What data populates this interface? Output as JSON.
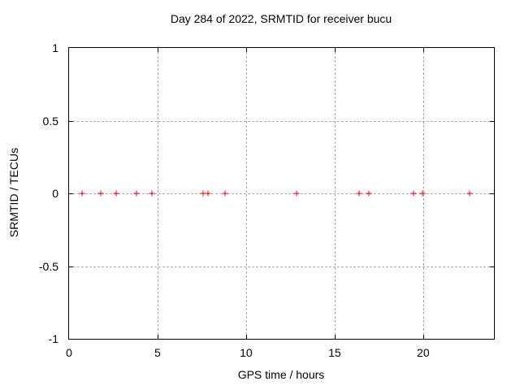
{
  "window": {
    "background": "#ffffff"
  },
  "colors": {
    "marker": "#ff0000",
    "grid": "#ababab",
    "axis": "#000000",
    "text": "#000000",
    "background": "#ffffff"
  },
  "chart_data": {
    "type": "scatter",
    "title": "Day 284 of 2022, SRMTID for receiver bucu",
    "xlabel": "GPS time / hours",
    "ylabel": "SRMTID / TECUs",
    "xlim": [
      0,
      24
    ],
    "ylim": [
      -1,
      1
    ],
    "x_ticks": [
      0,
      5,
      10,
      15,
      20
    ],
    "x_tick_labels": [
      "0",
      "5",
      "10",
      "15",
      "20"
    ],
    "y_ticks": [
      1,
      0.5,
      0,
      -0.5,
      -1
    ],
    "y_tick_labels": [
      "1",
      "0.5",
      "0",
      "-0.5",
      "-1"
    ],
    "grid": true,
    "legend_position": "none",
    "marker_style": "plus",
    "series": [
      {
        "name": "SRMTID",
        "color": "#ff0000",
        "x": [
          0.73,
          1.8,
          2.64,
          3.83,
          4.66,
          7.56,
          7.86,
          8.8,
          12.83,
          16.4,
          16.92,
          19.44,
          19.97,
          22.62
        ],
        "y": [
          0,
          0,
          0,
          0,
          0,
          0,
          0,
          0,
          0,
          0,
          0,
          0,
          0,
          0
        ]
      }
    ]
  }
}
